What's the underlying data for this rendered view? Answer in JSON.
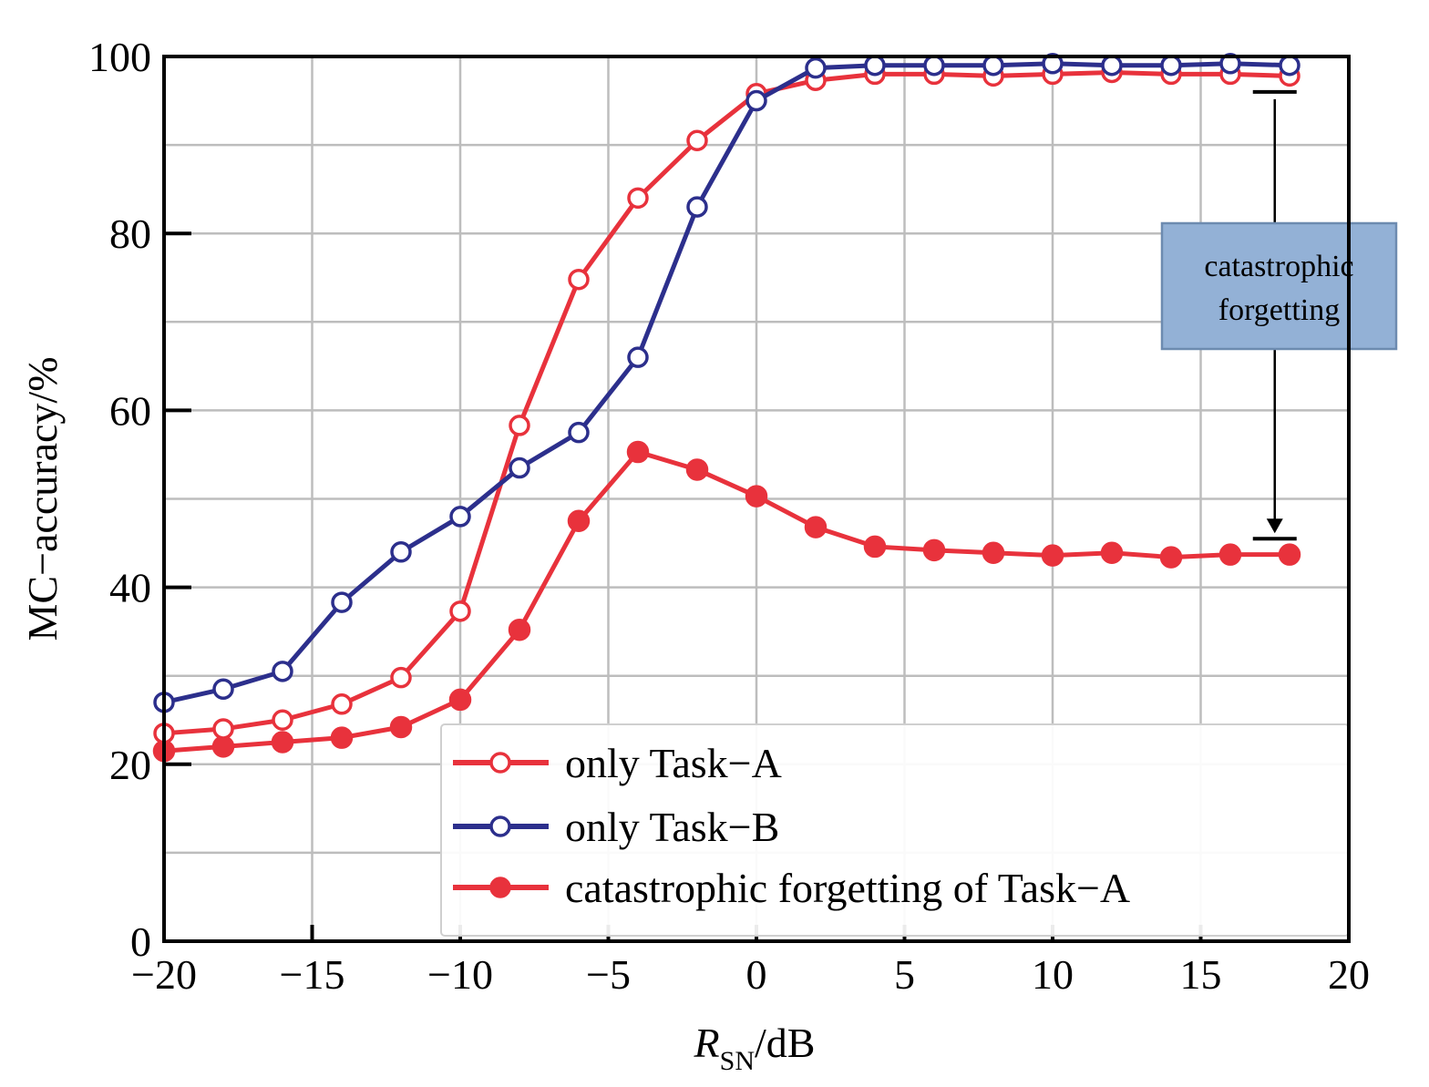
{
  "chart_data": {
    "type": "line",
    "xlabel_main": "R",
    "xlabel_sub": "SN",
    "xlabel_unit": "/dB",
    "ylabel": "MC−accuracy/%",
    "xlim": [
      -20,
      20
    ],
    "ylim": [
      0,
      100
    ],
    "x_ticks": [
      -20,
      -15,
      -10,
      -5,
      0,
      5,
      10,
      15,
      20
    ],
    "x_tick_labels": [
      "−20",
      "−15",
      "−10",
      "−5",
      "0",
      "5",
      "10",
      "15",
      "20"
    ],
    "y_ticks": [
      0,
      20,
      40,
      60,
      80,
      100
    ],
    "y_tick_labels": [
      "0",
      "20",
      "40",
      "60",
      "80",
      "100"
    ],
    "grid": true,
    "legend_position": "bottom-right",
    "x": [
      -20,
      -18,
      -16,
      -14,
      -12,
      -10,
      -8,
      -6,
      -4,
      -2,
      0,
      2,
      4,
      6,
      8,
      10,
      12,
      14,
      16,
      18
    ],
    "series": [
      {
        "name": "only Task−A",
        "color": "#e8323c",
        "marker": "open-circle",
        "values": [
          23.5,
          24,
          25,
          26.8,
          29.8,
          37.3,
          58.3,
          74.8,
          84,
          90.5,
          95.8,
          97.3,
          98,
          98,
          97.8,
          98,
          98.2,
          98,
          98,
          97.8
        ]
      },
      {
        "name": "only Task−B",
        "color": "#2c2f8c",
        "marker": "open-circle",
        "values": [
          27,
          28.5,
          30.5,
          38.3,
          44,
          48,
          53.5,
          57.5,
          66,
          83,
          95,
          98.7,
          99,
          99,
          99,
          99.2,
          99,
          99,
          99.2,
          99
        ]
      },
      {
        "name": "catastrophic forgetting of Task−A",
        "color": "#e8323c",
        "marker": "filled-circle",
        "values": [
          21.5,
          22,
          22.5,
          23,
          24.2,
          27.3,
          35.2,
          47.5,
          55.3,
          53.3,
          50.3,
          46.8,
          44.6,
          44.2,
          43.9,
          43.6,
          43.9,
          43.4,
          43.7,
          43.7
        ]
      }
    ],
    "annotation": {
      "lines": [
        "catastrophic",
        "forgetting"
      ],
      "x": 17.5,
      "y_top": 96,
      "y_bottom": 45.5
    }
  }
}
